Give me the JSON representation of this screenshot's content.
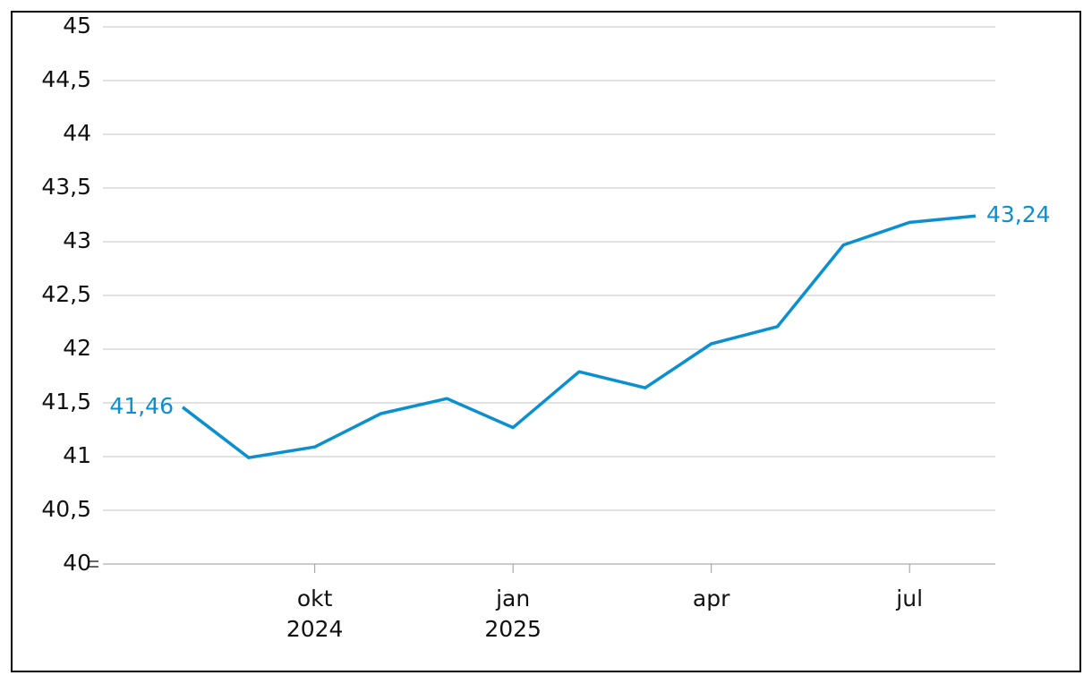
{
  "chart_data": {
    "type": "line",
    "categories": [
      null,
      null,
      "okt 2024",
      null,
      null,
      "jan 2025",
      null,
      null,
      "apr",
      null,
      null,
      "jul",
      null
    ],
    "values": [
      41.46,
      40.99,
      41.09,
      41.4,
      41.54,
      41.27,
      41.79,
      41.64,
      42.05,
      42.21,
      42.97,
      43.18,
      43.24
    ],
    "value_labels": [
      "41,46",
      null,
      null,
      null,
      null,
      null,
      null,
      null,
      null,
      null,
      null,
      null,
      "43,24"
    ],
    "color": "#0a8fd0",
    "ylim": [
      40,
      45
    ],
    "yticks": [
      40,
      {
        "value": 40.5,
        "label": "40,5"
      },
      41,
      {
        "value": 41.5,
        "label": "41,5"
      },
      42,
      {
        "value": 42.5,
        "label": "42,5"
      },
      43,
      {
        "value": 43.5,
        "label": "43,5"
      },
      44,
      {
        "value": 44.5,
        "label": "44,5"
      },
      45
    ],
    "grid": true
  }
}
